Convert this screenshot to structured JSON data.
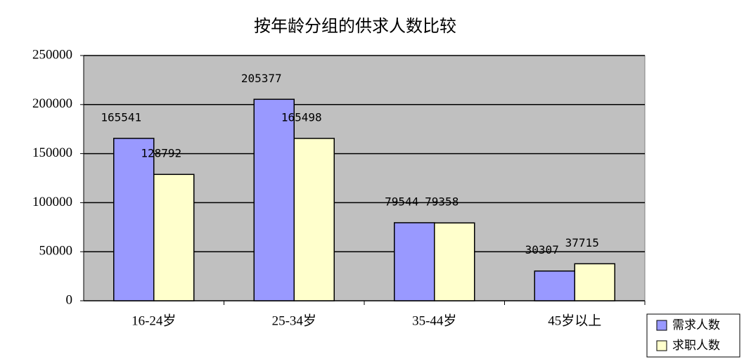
{
  "chart_data": {
    "type": "bar",
    "title": "按年龄分组的供求人数比较",
    "categories": [
      "16-24岁",
      "25-34岁",
      "35-44岁",
      "45岁以上"
    ],
    "series": [
      {
        "name": "需求人数",
        "color": "#9999ff",
        "values": [
          165541,
          205377,
          79544,
          30307
        ]
      },
      {
        "name": "求职人数",
        "color": "#ffffcc",
        "values": [
          128792,
          165498,
          79358,
          37715
        ]
      }
    ],
    "ylim": [
      0,
      250000
    ],
    "yticks": [
      0,
      50000,
      100000,
      150000,
      200000,
      250000
    ],
    "grid": true,
    "legend": "bottom-right",
    "plot_background": "#c0c0c0"
  }
}
